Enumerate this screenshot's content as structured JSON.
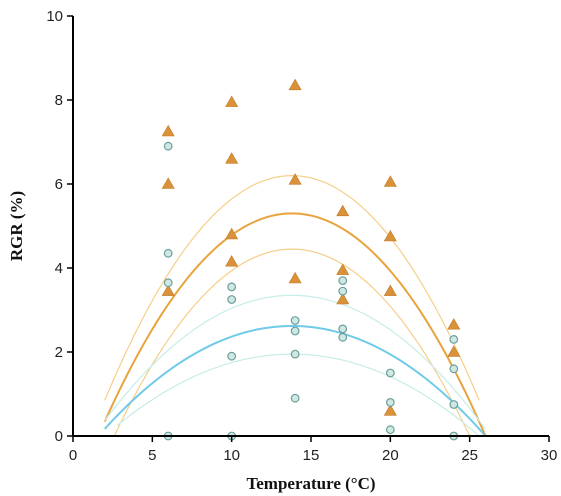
{
  "chart_data": {
    "type": "scatter",
    "title": "",
    "xlabel": "Temperature (°C)",
    "ylabel": "RGR (%)",
    "xlim": [
      0,
      30
    ],
    "ylim": [
      0,
      10
    ],
    "x_ticks": [
      "0",
      "5",
      "10",
      "15",
      "20",
      "25",
      "30"
    ],
    "y_ticks": [
      "0",
      "2",
      "4",
      "6",
      "8",
      "10"
    ],
    "grid": false,
    "legend": "none",
    "colors": {
      "triangle": "#d9913a",
      "triangle_stroke": "#c27b28",
      "circle_fill": "#cfe8e4",
      "circle_stroke": "#6a9f99",
      "orange_curve": "#e8a33c",
      "orange_band": "#f6cf87",
      "blue_curve": "#6fcbe8",
      "blue_band": "#c6ede8",
      "axis": "#000000"
    },
    "series": [
      {
        "marker": "triangle",
        "points": [
          [
            6,
            7.25
          ],
          [
            6,
            6.0
          ],
          [
            6,
            3.45
          ],
          [
            10,
            7.95
          ],
          [
            10,
            6.6
          ],
          [
            10,
            4.8
          ],
          [
            10,
            4.15
          ],
          [
            14,
            8.35
          ],
          [
            14,
            6.1
          ],
          [
            14,
            3.75
          ],
          [
            17,
            5.35
          ],
          [
            17,
            3.95
          ],
          [
            17,
            3.25
          ],
          [
            20,
            6.05
          ],
          [
            20,
            4.75
          ],
          [
            20,
            3.45
          ],
          [
            20,
            0.6
          ],
          [
            24,
            2.65
          ],
          [
            24,
            2.0
          ]
        ]
      },
      {
        "marker": "circle",
        "points": [
          [
            6,
            6.9
          ],
          [
            6,
            4.35
          ],
          [
            6,
            3.65
          ],
          [
            6,
            0.0
          ],
          [
            10,
            3.55
          ],
          [
            10,
            3.25
          ],
          [
            10,
            1.9
          ],
          [
            10,
            0.0
          ],
          [
            14,
            2.75
          ],
          [
            14,
            2.5
          ],
          [
            14,
            1.95
          ],
          [
            14,
            0.9
          ],
          [
            17,
            3.7
          ],
          [
            17,
            3.45
          ],
          [
            17,
            2.55
          ],
          [
            17,
            2.35
          ],
          [
            20,
            1.5
          ],
          [
            20,
            0.8
          ],
          [
            20,
            0.15
          ],
          [
            24,
            2.3
          ],
          [
            24,
            1.6
          ],
          [
            24,
            0.75
          ],
          [
            24,
            0.0
          ]
        ]
      }
    ],
    "fits": [
      {
        "color_key": "orange_curve",
        "width": 2,
        "type": "quadratic",
        "vertex_x": 13.8,
        "peak": 5.3,
        "x_intercept": 26.0,
        "x_range": [
          2.0,
          26.0
        ]
      },
      {
        "color_key": "orange_band",
        "width": 1.2,
        "type": "quadratic",
        "vertex_x": 13.8,
        "peak": 6.2,
        "x_intercept": 26.5,
        "x_range": [
          2.0,
          25.6
        ]
      },
      {
        "color_key": "orange_band",
        "width": 1.2,
        "type": "quadratic",
        "vertex_x": 13.8,
        "peak": 4.45,
        "x_intercept": 25.0,
        "x_range": [
          2.6,
          25.0
        ]
      },
      {
        "color_key": "blue_curve",
        "width": 2,
        "type": "quadratic",
        "vertex_x": 13.8,
        "peak": 2.62,
        "x_intercept": 26.0,
        "x_range": [
          2.0,
          26.0
        ]
      },
      {
        "color_key": "blue_band",
        "width": 1.2,
        "type": "quadratic",
        "vertex_x": 13.8,
        "peak": 3.35,
        "x_intercept": 26.3,
        "x_range": [
          2.0,
          26.0
        ]
      },
      {
        "color_key": "blue_band",
        "width": 1.2,
        "type": "quadratic",
        "vertex_x": 13.8,
        "peak": 1.95,
        "x_intercept": 25.6,
        "x_range": [
          2.8,
          25.6
        ]
      }
    ]
  }
}
